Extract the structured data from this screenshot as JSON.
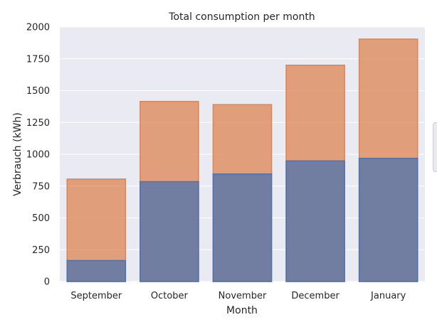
{
  "chart_data": {
    "type": "bar",
    "title": "Total consumption per month",
    "xlabel": "Month",
    "ylabel": "Verbrauch (kWh)",
    "categories": [
      "September",
      "October",
      "November",
      "December",
      "January"
    ],
    "series": [
      {
        "values": [
          805,
          1415,
          1390,
          1700,
          1905
        ],
        "color": "#dd8452"
      },
      {
        "values": [
          165,
          785,
          845,
          948,
          968
        ],
        "color": "#4c72b0"
      }
    ],
    "ylim": [
      0,
      2000
    ],
    "yticks": [
      0,
      250,
      500,
      750,
      1000,
      1250,
      1500,
      1750,
      2000
    ],
    "grid": true,
    "background": "#eaeaf2",
    "legend_position": "right (clipped)"
  }
}
